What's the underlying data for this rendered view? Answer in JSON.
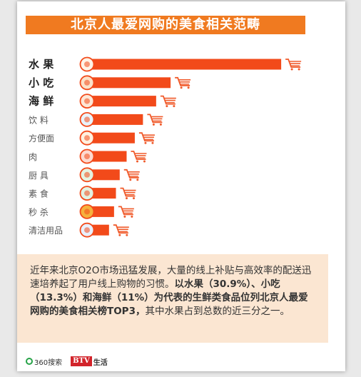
{
  "title": "北京人最爱网购的美食相关范畴",
  "colors": {
    "accent": "#f07a20",
    "bar": "#f24a1a",
    "cart": "#f05a2a",
    "panel": "#fbe6d2"
  },
  "chart_data": {
    "type": "bar",
    "orientation": "horizontal",
    "categories": [
      "水 果",
      "小 吃",
      "海 鲜",
      "饮 料",
      "方便面",
      "肉",
      "厨 具",
      "素 食",
      "秒 杀",
      "清洁用品"
    ],
    "values": [
      30.9,
      13.3,
      11,
      8.9,
      7.6,
      6.3,
      5.2,
      4.6,
      4.3,
      3.5
    ],
    "bold_categories": [
      true,
      true,
      true,
      false,
      false,
      false,
      false,
      false,
      false,
      false
    ],
    "icons": [
      "fruit-icon",
      "snack-icon",
      "crab-icon",
      "drink-icon",
      "noodle-icon",
      "meat-icon",
      "kitchenware-icon",
      "vegetable-icon",
      "flash-sale-icon",
      "cleaning-icon"
    ],
    "xlim": [
      0,
      31
    ]
  },
  "description": {
    "p1": "近年来北京O2O市场迅猛发展，大量的线上补贴与高效率的配送迅速培养起了用户线上购物的习惯。",
    "p2_bold": "以水果（30.9%）、小吃（13.3%）和海鲜（11%）为代表的生鲜类食品位列北京人最爱网购的美食相关榜TOP3，",
    "p3": "其中水果占到总数的近三分之一。"
  },
  "footer": {
    "brand1": "360搜索",
    "brand2_box": "BTV",
    "brand2_text": "生活"
  }
}
